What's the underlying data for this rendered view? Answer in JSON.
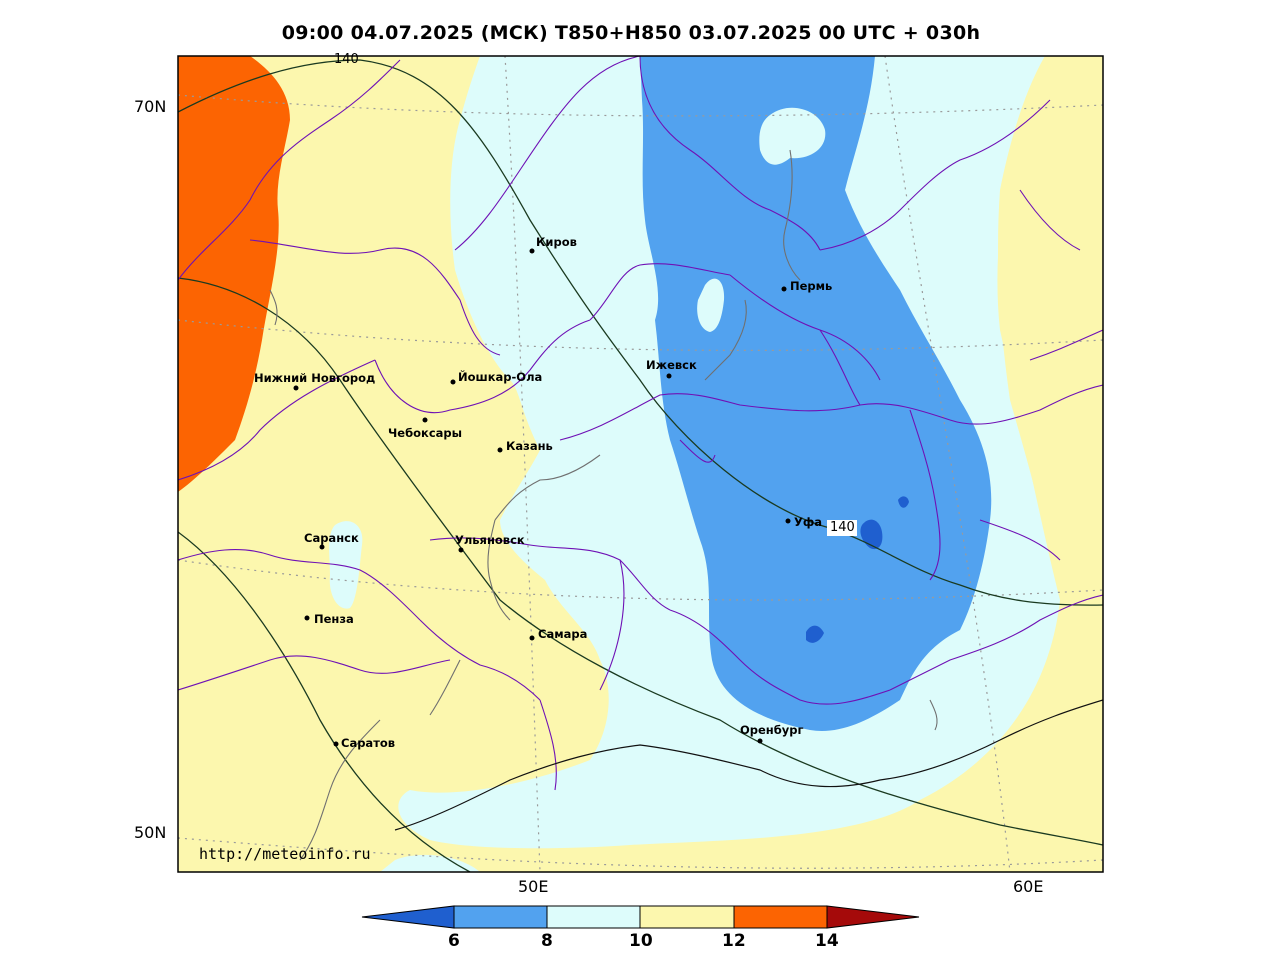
{
  "title": "09:00 04.07.2025 (МСК) T850+H850 03.07.2025 00 UTC + 030h",
  "axes": {
    "lat_labels": [
      "70N",
      "50N"
    ],
    "lon_labels": [
      "50E",
      "60E"
    ]
  },
  "url": "http://meteoinfo.ru",
  "contour_labels": [
    "140",
    "140"
  ],
  "cities": [
    {
      "name": "Киров"
    },
    {
      "name": "Пермь"
    },
    {
      "name": "Ижевск"
    },
    {
      "name": "Нижний Новгород"
    },
    {
      "name": "Йошкар-Ола"
    },
    {
      "name": "Чебоксары"
    },
    {
      "name": "Казань"
    },
    {
      "name": "Уфа"
    },
    {
      "name": "Саранск"
    },
    {
      "name": "Ульяновск"
    },
    {
      "name": "Пенза"
    },
    {
      "name": "Самара"
    },
    {
      "name": "Оренбург"
    },
    {
      "name": "Саратов"
    }
  ],
  "colorbar": {
    "levels": [
      "6",
      "8",
      "10",
      "12",
      "14"
    ],
    "colors": [
      "#1f5fcf",
      "#52a2ef",
      "#ddfcfb",
      "#fcf7ae",
      "#fc6402",
      "#a50a0a"
    ]
  }
}
